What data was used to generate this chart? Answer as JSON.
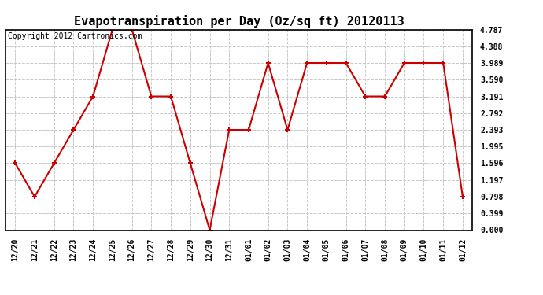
{
  "title": "Evapotranspiration per Day (Oz/sq ft) 20120113",
  "copyright_text": "Copyright 2012 Cartronics.com",
  "x_labels": [
    "12/20",
    "12/21",
    "12/22",
    "12/23",
    "12/24",
    "12/25",
    "12/26",
    "12/27",
    "12/28",
    "12/29",
    "12/30",
    "12/31",
    "01/01",
    "01/02",
    "01/03",
    "01/04",
    "01/05",
    "01/06",
    "01/07",
    "01/08",
    "01/09",
    "01/10",
    "01/11",
    "01/12"
  ],
  "y_values": [
    1.596,
    0.798,
    1.596,
    2.393,
    3.191,
    4.787,
    4.787,
    3.191,
    3.191,
    1.596,
    0.0,
    2.393,
    2.393,
    3.989,
    2.393,
    3.989,
    3.989,
    3.989,
    3.191,
    3.191,
    3.989,
    3.989,
    3.989,
    0.798
  ],
  "y_ticks": [
    0.0,
    0.399,
    0.798,
    1.197,
    1.596,
    1.995,
    2.393,
    2.792,
    3.191,
    3.59,
    3.989,
    4.388,
    4.787
  ],
  "line_color": "#cc0000",
  "marker_color": "#cc0000",
  "bg_color": "#ffffff",
  "grid_color": "#c8c8c8",
  "title_fontsize": 11,
  "copyright_fontsize": 7,
  "tick_fontsize": 7,
  "ylim": [
    0.0,
    4.787
  ]
}
